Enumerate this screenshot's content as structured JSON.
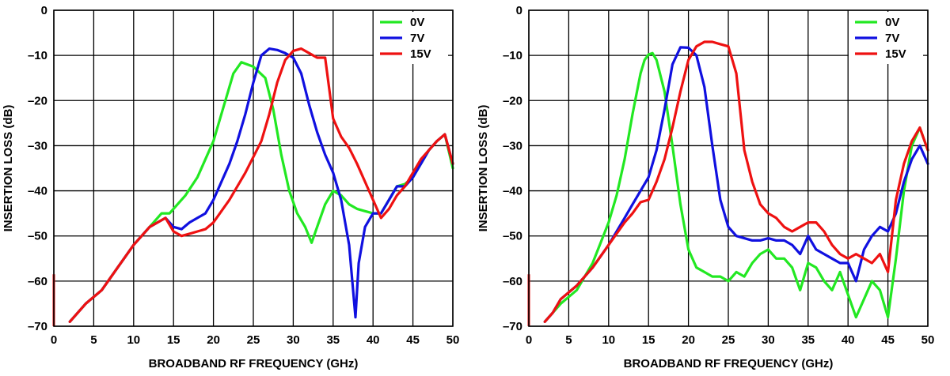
{
  "chart_data": [
    {
      "type": "line",
      "xlabel": "BROADBAND RF FREQUENCY (GHz)",
      "ylabel": "INSERTION LOSS (dB)",
      "xlim": [
        0,
        50
      ],
      "ylim": [
        -70,
        0
      ],
      "xticks": [
        "0",
        "5",
        "10",
        "15",
        "20",
        "25",
        "30",
        "35",
        "40",
        "45",
        "50"
      ],
      "yticks": [
        "0",
        "–10",
        "–20",
        "–30",
        "–40",
        "–50",
        "–60",
        "–70"
      ],
      "grid": true,
      "legend_position": "top-right",
      "series": [
        {
          "name": "0V",
          "color": "#22e822",
          "x": [
            2,
            3,
            4,
            6,
            8,
            10,
            12,
            13.5,
            14.5,
            15.5,
            16.5,
            18,
            20,
            21.5,
            22.5,
            23.5,
            25,
            26.5,
            27.5,
            28.5,
            29.5,
            30.5,
            31.5,
            32.3,
            33,
            34,
            35,
            36,
            37,
            38,
            39,
            40,
            41,
            42,
            43,
            44,
            45,
            46,
            47,
            48,
            49,
            50
          ],
          "y": [
            -69,
            -67,
            -65,
            -62,
            -57,
            -52,
            -48,
            -45,
            -45,
            -43,
            -41,
            -37,
            -29,
            -20,
            -14,
            -11.5,
            -12.5,
            -15,
            -22,
            -32,
            -40,
            -45,
            -48,
            -51.5,
            -48,
            -43,
            -40,
            -41,
            -43,
            -44,
            -44.5,
            -45,
            -45,
            -42,
            -39,
            -38.5,
            -37,
            -34,
            -31,
            -29,
            -27.5,
            -35
          ]
        },
        {
          "name": "7V",
          "color": "#1010e0",
          "x": [
            2,
            3,
            4,
            6,
            8,
            10,
            12,
            14,
            15,
            16,
            17,
            18,
            19,
            20,
            21,
            22,
            23,
            24,
            25,
            26,
            27,
            28,
            29,
            30,
            31,
            32,
            33,
            34,
            35,
            36,
            37,
            37.8,
            38.2,
            39,
            40,
            41,
            42,
            43,
            44,
            45,
            46,
            47,
            48,
            49,
            50
          ],
          "y": [
            -69,
            -67,
            -65,
            -62,
            -57,
            -52,
            -48,
            -46,
            -48,
            -48.5,
            -47,
            -46,
            -45,
            -42,
            -38,
            -34,
            -29,
            -23,
            -16,
            -10,
            -8.5,
            -8.8,
            -9.5,
            -10.5,
            -14,
            -21,
            -27,
            -32,
            -36,
            -42,
            -52,
            -68,
            -56,
            -48,
            -45,
            -45,
            -42,
            -39,
            -39,
            -37,
            -34,
            -31,
            -29,
            -27.5,
            -34
          ]
        },
        {
          "name": "15V",
          "color": "#ee1111",
          "x": [
            2,
            3,
            4,
            6,
            8,
            10,
            12,
            14,
            15,
            16,
            17,
            18,
            19,
            20,
            22,
            24,
            26,
            27,
            28,
            29,
            30,
            31,
            32,
            33,
            34,
            35,
            36,
            37,
            38,
            39,
            40,
            41,
            42,
            43,
            44,
            45,
            46,
            47,
            48,
            49,
            50
          ],
          "y": [
            -69,
            -67,
            -65,
            -62,
            -57,
            -52,
            -48,
            -46,
            -49,
            -50,
            -49.5,
            -49,
            -48.5,
            -47,
            -42,
            -36,
            -29,
            -23,
            -16,
            -11,
            -9,
            -8.5,
            -9.5,
            -10.5,
            -10.5,
            -24,
            -28,
            -30.5,
            -34,
            -38,
            -42,
            -46,
            -44,
            -41,
            -39,
            -36,
            -33,
            -31,
            -29,
            -27.5,
            -34
          ]
        }
      ]
    },
    {
      "type": "line",
      "xlabel": "BROADBAND RF FREQUENCY (GHz)",
      "ylabel": "INSERTION LOSS (dB)",
      "xlim": [
        0,
        50
      ],
      "ylim": [
        -70,
        0
      ],
      "xticks": [
        "0",
        "5",
        "10",
        "15",
        "20",
        "25",
        "30",
        "35",
        "40",
        "45",
        "50"
      ],
      "yticks": [
        "0",
        "–10",
        "–20",
        "–30",
        "–40",
        "–50",
        "–60",
        "–70"
      ],
      "grid": true,
      "legend_position": "top-right",
      "series": [
        {
          "name": "0V",
          "color": "#22e822",
          "x": [
            2,
            3,
            4,
            6,
            8,
            10,
            11,
            12,
            13,
            14,
            14.5,
            15,
            15.5,
            16,
            17,
            18,
            19,
            20,
            21,
            22,
            23,
            24,
            25,
            26,
            27,
            28,
            29,
            30,
            31,
            32,
            33,
            34,
            35,
            36,
            37,
            38,
            39,
            40,
            41,
            42,
            43,
            44,
            45,
            46,
            47,
            48,
            49,
            50
          ],
          "y": [
            -69,
            -67,
            -65,
            -62,
            -56,
            -47,
            -41,
            -33,
            -23,
            -14,
            -11,
            -9.8,
            -9.5,
            -11,
            -18,
            -30,
            -43,
            -53,
            -57,
            -58,
            -59,
            -59,
            -60,
            -58,
            -59,
            -56,
            -54,
            -53,
            -55,
            -55,
            -57,
            -62,
            -56,
            -57,
            -60,
            -62,
            -58,
            -63,
            -68,
            -64,
            -60,
            -62,
            -68,
            -55,
            -40,
            -30,
            -26,
            -31
          ]
        },
        {
          "name": "7V",
          "color": "#1010e0",
          "x": [
            2,
            3,
            4,
            6,
            8,
            10,
            12,
            13,
            14,
            15,
            16,
            17,
            18,
            19,
            20,
            21,
            22,
            23,
            24,
            25,
            26,
            27,
            28,
            29,
            30,
            31,
            32,
            33,
            34,
            35,
            36,
            37,
            38,
            39,
            40,
            41,
            42,
            43,
            44,
            45,
            46,
            47,
            48,
            49,
            50
          ],
          "y": [
            -69,
            -67,
            -64,
            -61,
            -57,
            -52,
            -46,
            -43,
            -40,
            -37,
            -31,
            -22,
            -12,
            -8.2,
            -8.3,
            -10,
            -17,
            -30,
            -42,
            -48,
            -50,
            -50.5,
            -51,
            -51,
            -50.5,
            -51,
            -51,
            -52,
            -54,
            -50,
            -53,
            -54,
            -55,
            -56,
            -56,
            -60,
            -53,
            -50,
            -48,
            -49,
            -45,
            -38,
            -33,
            -30,
            -34
          ]
        },
        {
          "name": "15V",
          "color": "#ee1111",
          "x": [
            2,
            3,
            4,
            6,
            8,
            10,
            12,
            13,
            14,
            15,
            16,
            17,
            18,
            19,
            20,
            21,
            22,
            23,
            24,
            25,
            26,
            27,
            28,
            29,
            30,
            31,
            32,
            33,
            34,
            35,
            36,
            37,
            38,
            39,
            40,
            41,
            42,
            43,
            44,
            45,
            46,
            47,
            48,
            49,
            50
          ],
          "y": [
            -69,
            -67,
            -64,
            -61,
            -57,
            -52,
            -47,
            -45,
            -42.5,
            -42,
            -38,
            -33,
            -26,
            -18,
            -11,
            -8,
            -7,
            -7,
            -7.5,
            -8,
            -14,
            -31,
            -38,
            -43,
            -45,
            -46,
            -48,
            -49,
            -48,
            -47,
            -47,
            -49,
            -52,
            -54,
            -55,
            -54,
            -55,
            -56,
            -54,
            -58,
            -42,
            -34,
            -29,
            -26,
            -31
          ]
        }
      ]
    }
  ]
}
